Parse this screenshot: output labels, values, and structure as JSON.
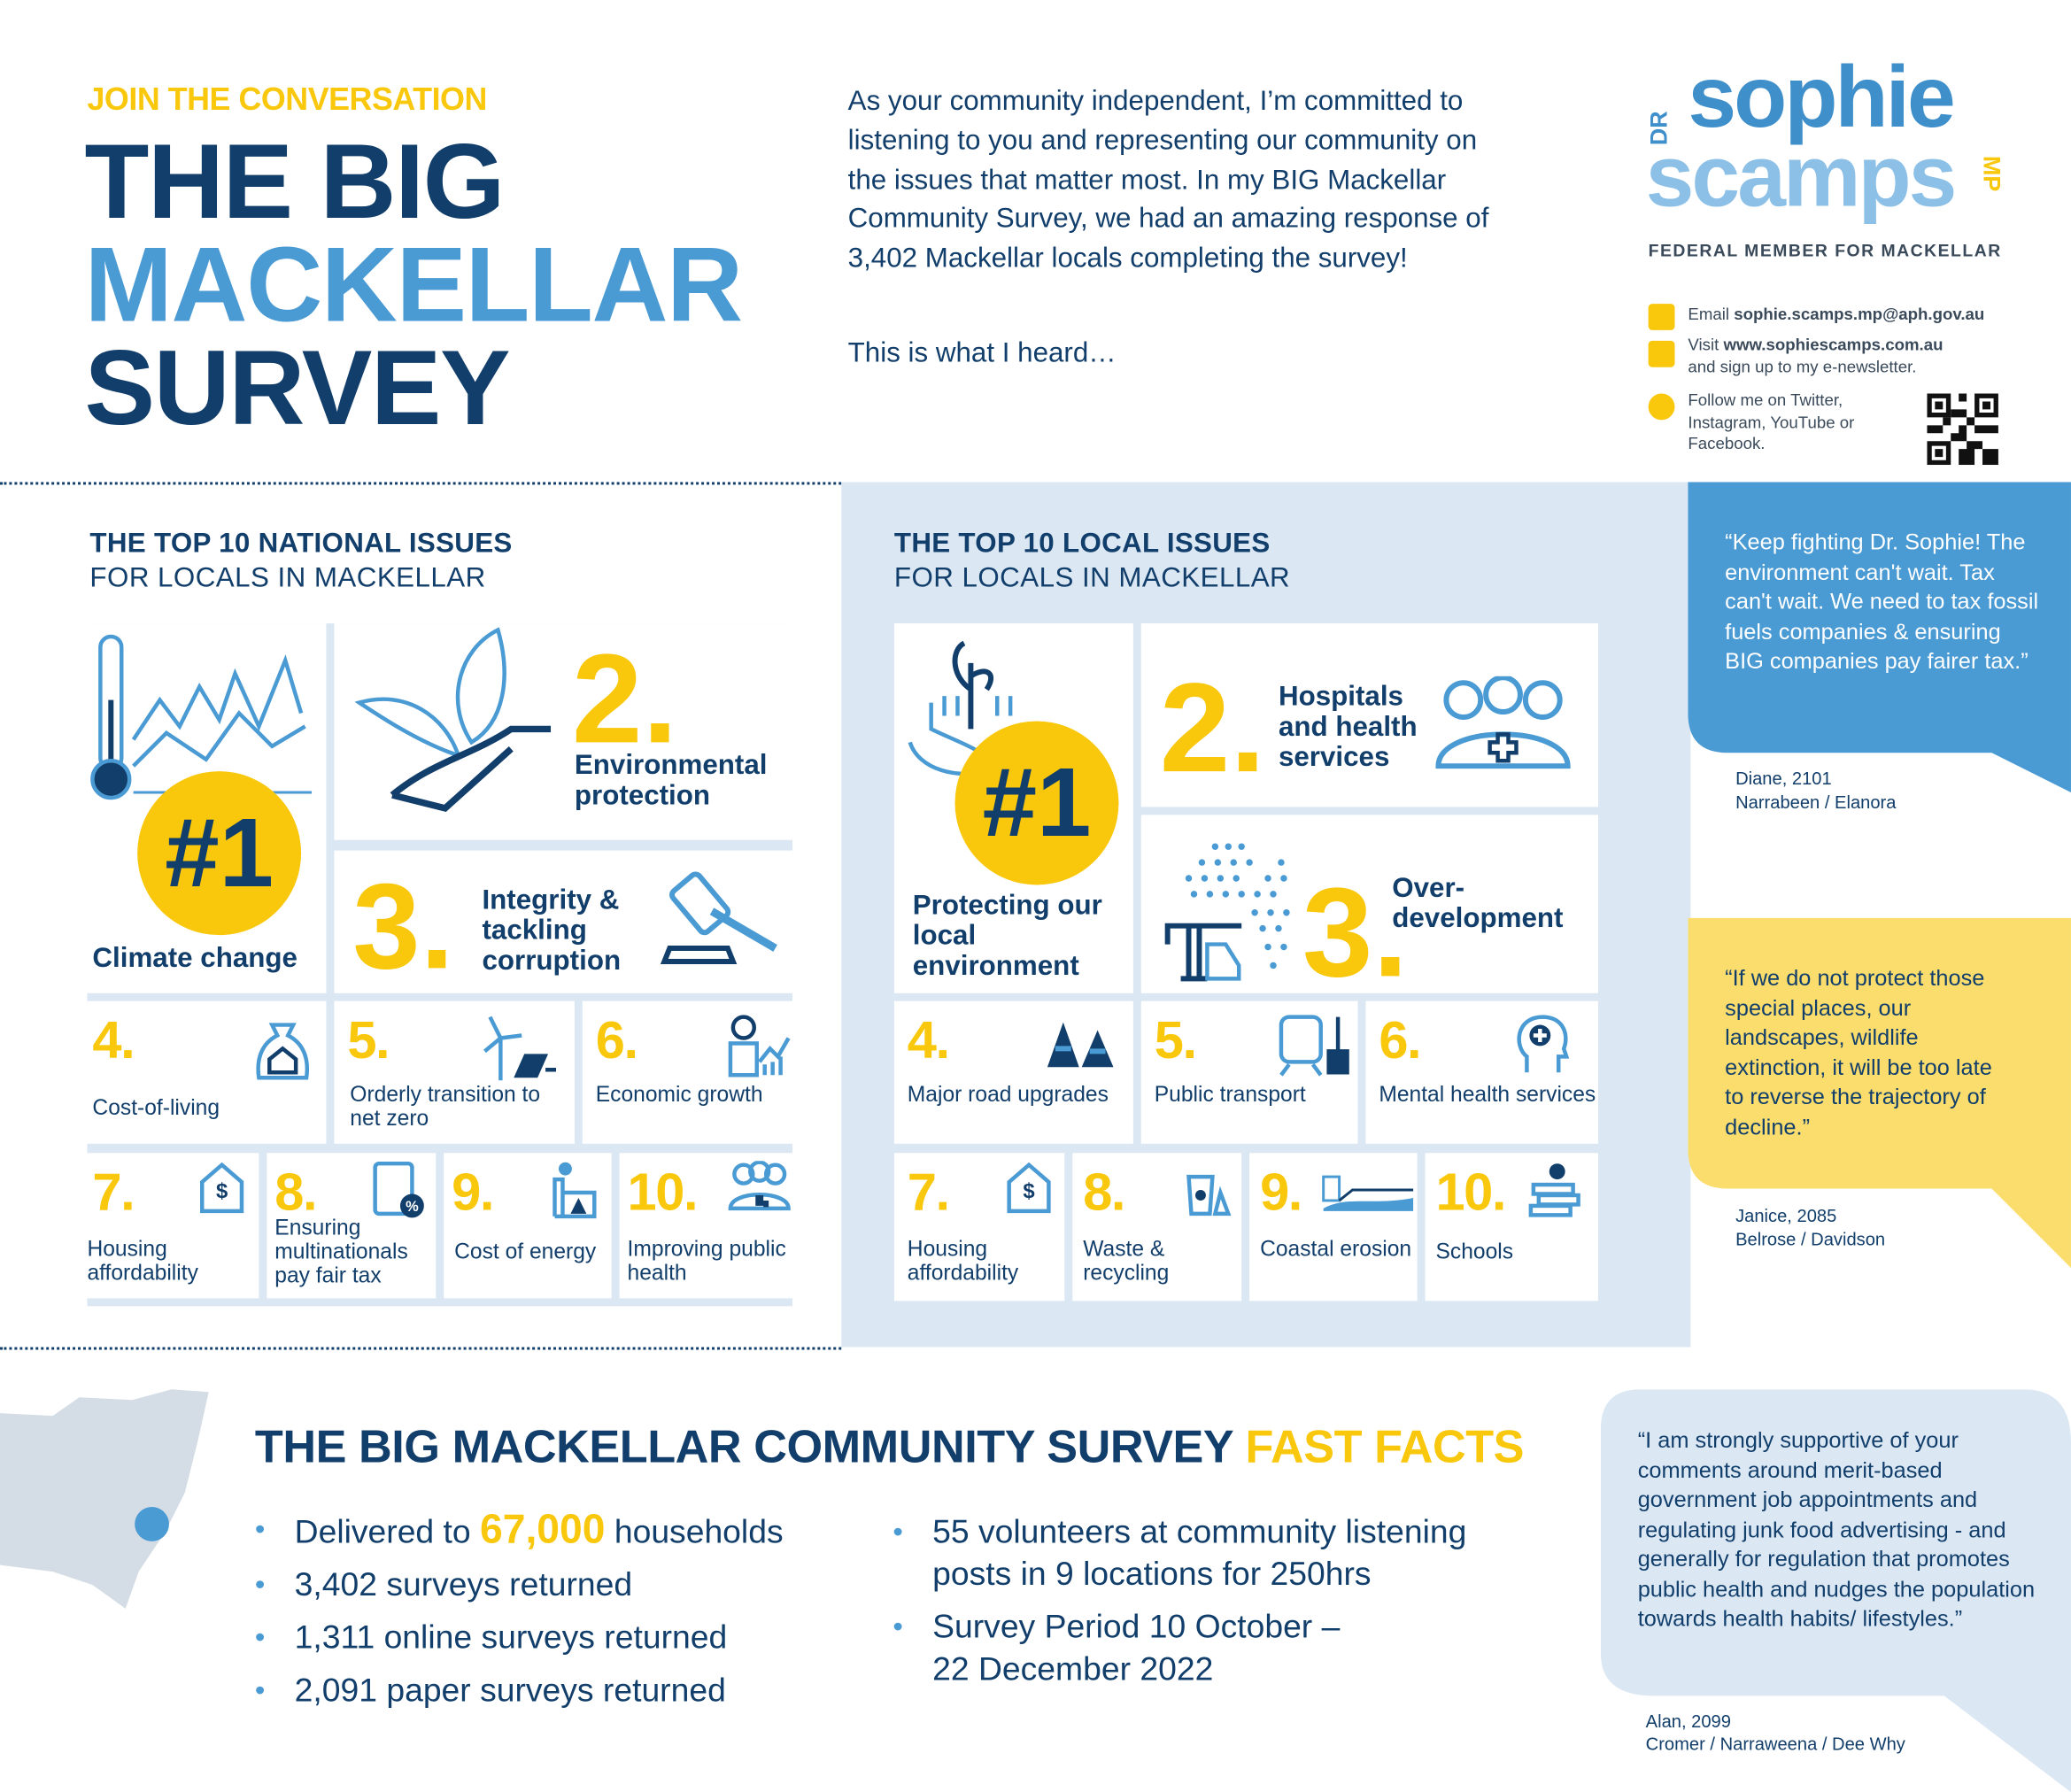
{
  "header": {
    "kicker": "JOIN THE CONVERSATION",
    "title_line1": "THE BIG",
    "title_line2": "MACKELLAR",
    "title_line3": "SURVEY",
    "intro": "As your community independent, I’m committed to listening to you and representing our community on the issues that matter most. In my BIG Mackellar Community Survey, we had an amazing response of 3,402 Mackellar locals completing the survey!",
    "heard": "This is what I heard…"
  },
  "logo": {
    "dr": "DR",
    "line1": "sophie",
    "line2": "scamps",
    "mp": "MP",
    "subtitle": "FEDERAL MEMBER FOR MACKELLAR"
  },
  "contact": {
    "email_prefix": "Email ",
    "email": "sophie.scamps.mp@aph.gov.au",
    "visit_prefix": "Visit ",
    "website": "www.sophiescamps.com.au",
    "visit_suffix": "and sign up to my e-newsletter.",
    "follow": "Follow me on Twitter, Instagram, YouTube or Facebook."
  },
  "national": {
    "title": "THE TOP 10 NATIONAL ISSUES",
    "subtitle": "FOR LOCALS IN MACKELLAR",
    "items": [
      {
        "rank": "#1",
        "label": "Climate change"
      },
      {
        "rank": "2.",
        "label": "Environmental protection"
      },
      {
        "rank": "3.",
        "label": "Integrity & tackling corruption"
      },
      {
        "rank": "4.",
        "label": "Cost-of-living"
      },
      {
        "rank": "5.",
        "label": "Orderly transition to net zero"
      },
      {
        "rank": "6.",
        "label": "Economic growth"
      },
      {
        "rank": "7.",
        "label": "Housing affordability"
      },
      {
        "rank": "8.",
        "label": "Ensuring multinationals pay fair tax"
      },
      {
        "rank": "9.",
        "label": "Cost of energy"
      },
      {
        "rank": "10.",
        "label": "Improving public health"
      }
    ]
  },
  "local": {
    "title": "THE TOP 10 LOCAL ISSUES",
    "subtitle": "FOR LOCALS IN MACKELLAR",
    "items": [
      {
        "rank": "#1",
        "label": "Protecting our local environment"
      },
      {
        "rank": "2.",
        "label": "Hospitals and health services"
      },
      {
        "rank": "3.",
        "label": "Over-development"
      },
      {
        "rank": "4.",
        "label": "Major road upgrades"
      },
      {
        "rank": "5.",
        "label": "Public transport"
      },
      {
        "rank": "6.",
        "label": "Mental health services"
      },
      {
        "rank": "7.",
        "label": "Housing affordability"
      },
      {
        "rank": "8.",
        "label": "Waste & recycling"
      },
      {
        "rank": "9.",
        "label": "Coastal erosion"
      },
      {
        "rank": "10.",
        "label": "Schools"
      }
    ]
  },
  "quotes": [
    {
      "text": "“Keep fighting Dr. Sophie! The environment can't wait. Tax can't wait. We need to tax fossil fuels companies & ensuring BIG companies pay fairer tax.”",
      "name": "Diane, 2101",
      "place": "Narrabeen / Elanora"
    },
    {
      "text": "“If we do not protect those special places, our landscapes, wildlife extinction, it will be too late to reverse the trajectory of decline.”",
      "name": "Janice, 2085",
      "place": "Belrose / Davidson"
    },
    {
      "text": "“I am strongly supportive of your comments around merit-based government job appointments and regulating junk food advertising - and generally for regulation that promotes public health and nudges the population towards health habits/ lifestyles.”",
      "name": "Alan, 2099",
      "place": "Cromer / Narraweena / Dee Why"
    }
  ],
  "facts": {
    "title": "THE BIG MACKELLAR COMMUNITY SURVEY",
    "title_accent": "FAST FACTS",
    "delivered_prefix": "Delivered to ",
    "delivered_number": "67,000",
    "delivered_suffix": " households",
    "items_left": [
      "3,402 surveys returned",
      "1,311 online surveys returned",
      "2,091 paper surveys returned"
    ],
    "items_right": [
      "55 volunteers at community listening posts in 9 locations for 250hrs",
      "Survey Period 10 October – 22 December 2022"
    ]
  },
  "colors": {
    "navy": "#123e6b",
    "blue": "#4a9ad4",
    "light_blue": "#dbe8f4",
    "yellow": "#f9c70c",
    "quote_yellow": "#fadd6c"
  }
}
